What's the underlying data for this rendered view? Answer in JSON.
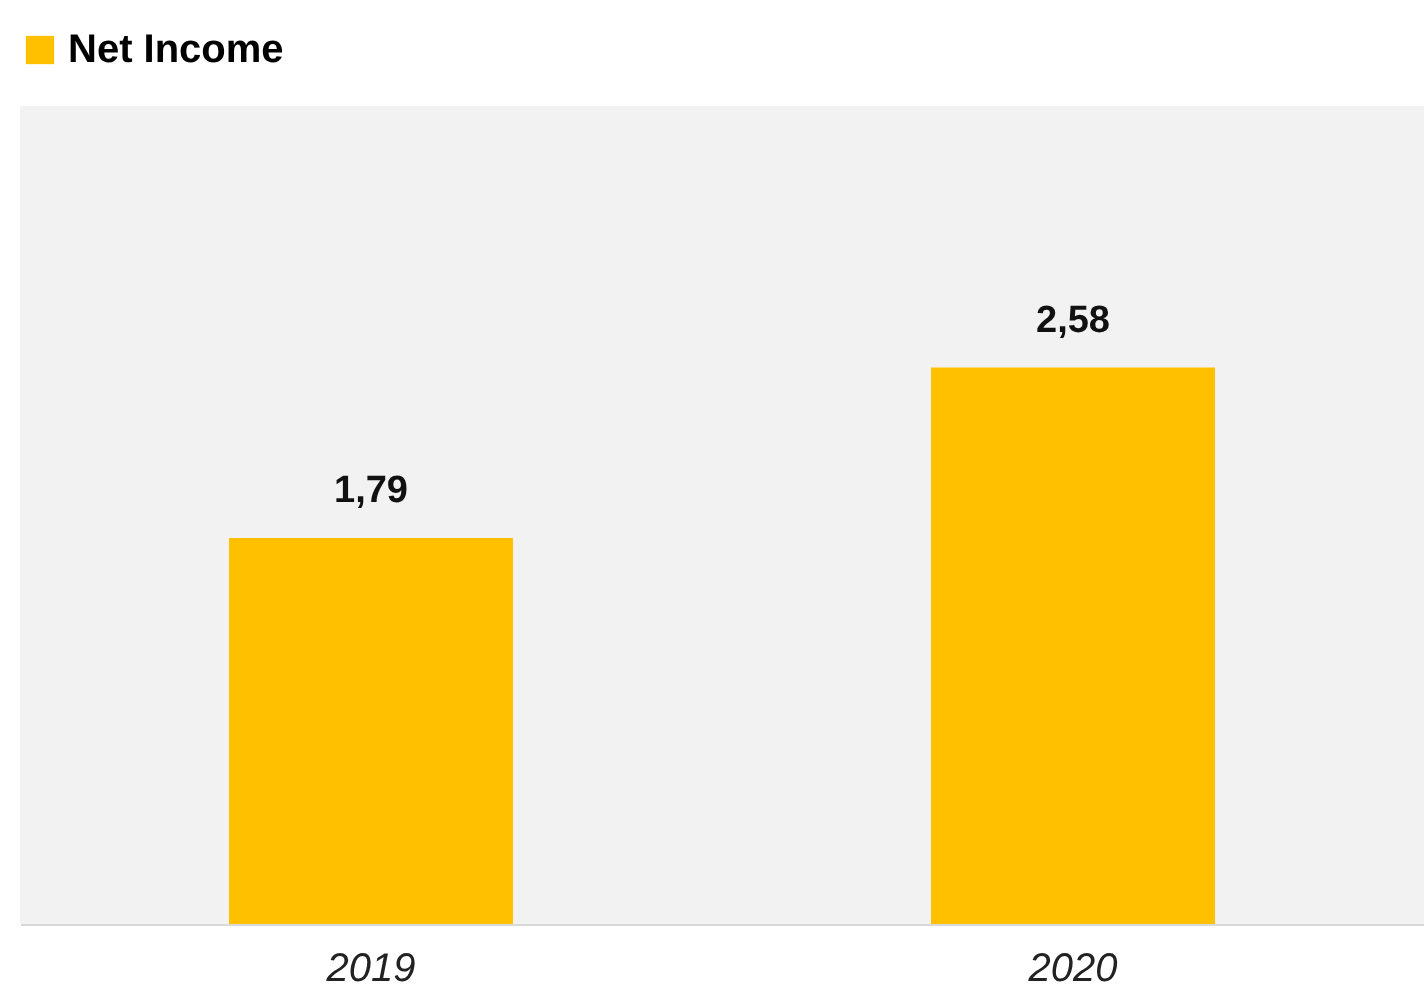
{
  "chart_data": {
    "type": "bar",
    "categories": [
      "2019",
      "2020"
    ],
    "series": [
      {
        "name": "Net Income",
        "color": "#ffc000",
        "values": [
          1.79,
          2.58
        ],
        "value_labels": [
          "1,79",
          "2,58"
        ]
      }
    ],
    "legend": "top",
    "grid": false
  }
}
